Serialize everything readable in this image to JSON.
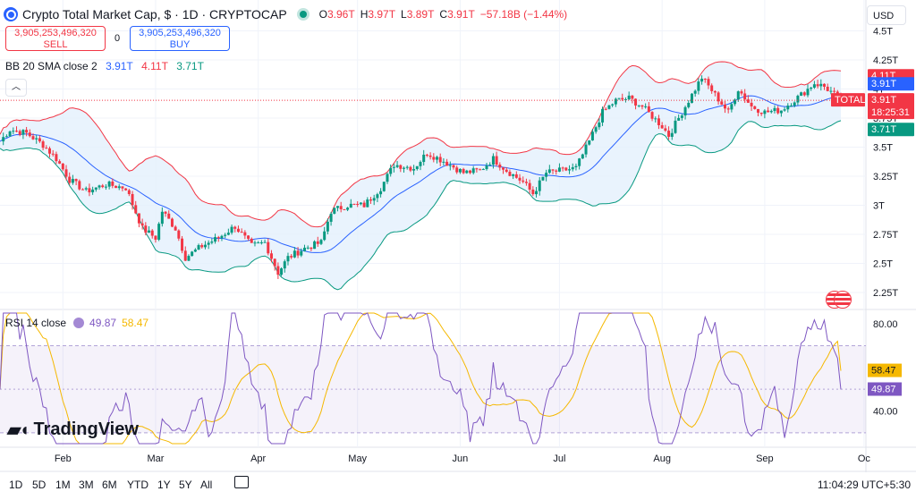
{
  "header": {
    "title": "Crypto Total Market Cap, $ · 1D · CRYPTOCAP",
    "open_label": "O",
    "open": "3.96T",
    "high_label": "H",
    "high": "3.97T",
    "low_label": "L",
    "low": "3.89T",
    "close_label": "C",
    "close": "3.91T",
    "change": "−57.18B (−1.44%)",
    "currency": "USD"
  },
  "trade": {
    "sell_price": "3,905,253,496,320",
    "sell_label": "SELL",
    "buy_price": "3,905,253,496,320",
    "buy_label": "BUY",
    "spread": "0"
  },
  "indicators": {
    "bb_label": "BB 20 SMA close 2",
    "bb_basis": "3.91T",
    "bb_upper": "4.11T",
    "bb_lower": "3.71T",
    "rsi_label": "RSI 14 close",
    "rsi_value": "49.87",
    "rsi_ma": "58.47"
  },
  "price_axis": {
    "ticks": [
      "4.5T",
      "4.25T",
      "4T",
      "3.75T",
      "3.5T",
      "3.25T",
      "3T",
      "2.75T",
      "2.5T",
      "2.25T"
    ],
    "tick_values": [
      4.5,
      4.25,
      4.0,
      3.75,
      3.5,
      3.25,
      3.0,
      2.75,
      2.5,
      2.25
    ],
    "badges": {
      "upper": "4.11T",
      "basis": "3.91T",
      "symbol": "TOTAL",
      "price": "3.91T",
      "countdown": "18:25:31",
      "lower": "3.71T"
    }
  },
  "rsi_axis": {
    "ticks": [
      "80.00",
      "40.00"
    ],
    "badge_ma": "58.47",
    "badge_rsi": "49.87"
  },
  "time_axis": {
    "labels": [
      "Feb",
      "Mar",
      "Apr",
      "May",
      "Jun",
      "Jul",
      "Aug",
      "Sep",
      "Oc"
    ]
  },
  "bottom": {
    "timeframes": [
      "1D",
      "5D",
      "1M",
      "3M",
      "6M",
      "YTD",
      "1Y",
      "5Y",
      "All"
    ],
    "clock": "11:04:29 UTC+5:30"
  },
  "logo": {
    "text": "TradingView"
  },
  "colors": {
    "up": "#089981",
    "down": "#f23645",
    "basis": "#2962ff",
    "rsi": "#7e57c2",
    "rsi_ma": "#f5b800",
    "band_fill": "#e3f0fc"
  },
  "chart_data": {
    "type": "line",
    "xlabel": "",
    "ylabel": "",
    "ylim": [
      2.15,
      4.55
    ],
    "x_range": [
      "2025-01-13",
      "2025-09-24"
    ],
    "price_keypoints": [
      [
        "2025-01-13",
        3.55
      ],
      [
        "2025-01-16",
        3.65
      ],
      [
        "2025-01-21",
        3.62
      ],
      [
        "2025-01-26",
        3.52
      ],
      [
        "2025-01-30",
        3.4
      ],
      [
        "2025-02-03",
        3.22
      ],
      [
        "2025-02-08",
        3.12
      ],
      [
        "2025-02-14",
        3.18
      ],
      [
        "2025-02-20",
        3.15
      ],
      [
        "2025-02-25",
        2.8
      ],
      [
        "2025-03-01",
        2.72
      ],
      [
        "2025-03-03",
        2.95
      ],
      [
        "2025-03-07",
        2.8
      ],
      [
        "2025-03-10",
        2.55
      ],
      [
        "2025-03-15",
        2.65
      ],
      [
        "2025-03-20",
        2.72
      ],
      [
        "2025-03-25",
        2.82
      ],
      [
        "2025-03-30",
        2.65
      ],
      [
        "2025-04-03",
        2.68
      ],
      [
        "2025-04-07",
        2.42
      ],
      [
        "2025-04-10",
        2.55
      ],
      [
        "2025-04-15",
        2.63
      ],
      [
        "2025-04-20",
        2.68
      ],
      [
        "2025-04-23",
        2.95
      ],
      [
        "2025-04-28",
        3.0
      ],
      [
        "2025-05-03",
        3.0
      ],
      [
        "2025-05-08",
        3.15
      ],
      [
        "2025-05-12",
        3.35
      ],
      [
        "2025-05-18",
        3.32
      ],
      [
        "2025-05-22",
        3.45
      ],
      [
        "2025-05-27",
        3.38
      ],
      [
        "2025-06-02",
        3.28
      ],
      [
        "2025-06-07",
        3.3
      ],
      [
        "2025-06-11",
        3.4
      ],
      [
        "2025-06-15",
        3.3
      ],
      [
        "2025-06-20",
        3.2
      ],
      [
        "2025-06-23",
        3.1
      ],
      [
        "2025-06-27",
        3.28
      ],
      [
        "2025-07-02",
        3.3
      ],
      [
        "2025-07-06",
        3.32
      ],
      [
        "2025-07-10",
        3.55
      ],
      [
        "2025-07-14",
        3.8
      ],
      [
        "2025-07-18",
        3.9
      ],
      [
        "2025-07-22",
        3.92
      ],
      [
        "2025-07-26",
        3.85
      ],
      [
        "2025-08-01",
        3.68
      ],
      [
        "2025-08-03",
        3.6
      ],
      [
        "2025-08-08",
        3.85
      ],
      [
        "2025-08-13",
        4.1
      ],
      [
        "2025-08-17",
        3.95
      ],
      [
        "2025-08-21",
        3.8
      ],
      [
        "2025-08-24",
        4.0
      ],
      [
        "2025-08-28",
        3.85
      ],
      [
        "2025-09-01",
        3.8
      ],
      [
        "2025-09-06",
        3.82
      ],
      [
        "2025-09-12",
        3.95
      ],
      [
        "2025-09-16",
        4.05
      ],
      [
        "2025-09-19",
        4.02
      ],
      [
        "2025-09-24",
        3.91
      ]
    ],
    "bb_upper": "4.11T",
    "bb_basis": "3.91T",
    "bb_lower": "3.71T",
    "rsi": {
      "ylim": [
        25,
        85
      ],
      "upper_band": 70,
      "lower_band": 30,
      "last": 49.87,
      "ma_last": 58.47
    }
  }
}
